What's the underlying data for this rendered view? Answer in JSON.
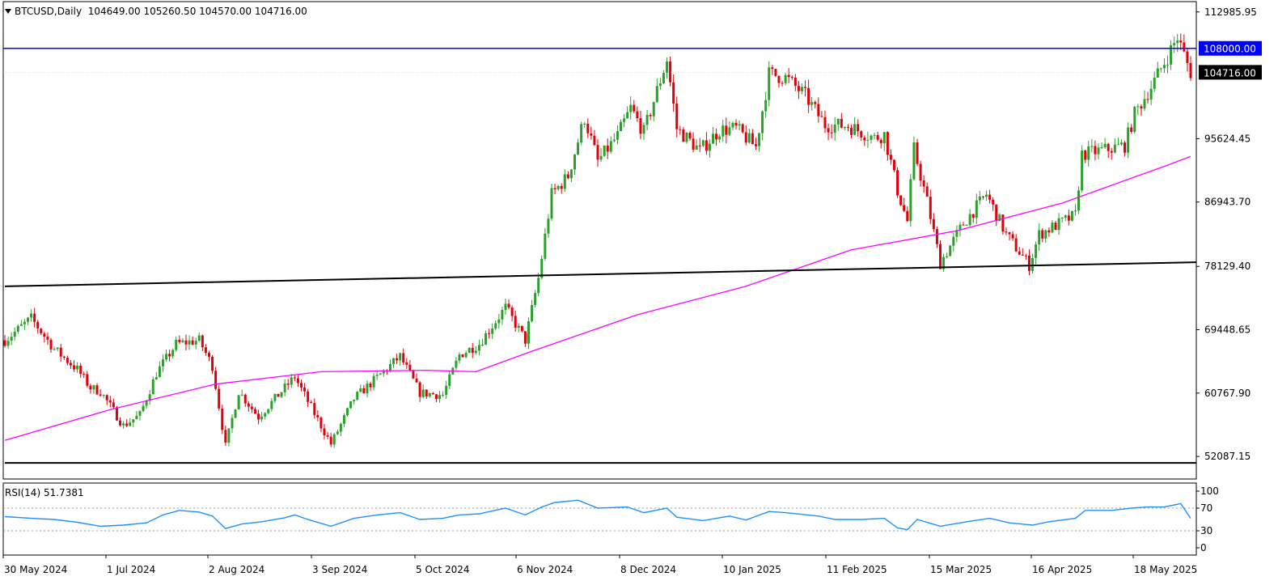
{
  "header": {
    "symbol": "BTCUSD,Daily",
    "open": "104649.00",
    "high": "105260.50",
    "low": "104570.00",
    "close": "104716.00"
  },
  "indicator": {
    "name": "RSI(14)",
    "value": "51.7381",
    "levels": [
      "100",
      "70",
      "30",
      "0"
    ]
  },
  "colors": {
    "up": "#2ca02c",
    "down": "#e0000c",
    "ma": "#ff00ff",
    "rsi": "#1e90ff",
    "hline": "#0000ff",
    "trend": "#000000"
  },
  "chart_data": [
    {
      "type": "candlestick",
      "title": "BTCUSD,Daily",
      "x_tick_labels": [
        "30 May 2024",
        "1 Jul 2024",
        "2 Aug 2024",
        "3 Sep 2024",
        "5 Oct 2024",
        "6 Nov 2024",
        "8 Dec 2024",
        "10 Jan 2025",
        "11 Feb 2025",
        "15 Mar 2025",
        "16 Apr 2025",
        "18 May 2025"
      ],
      "y_tick_labels": [
        "112985.95",
        "95624.45",
        "86943.70",
        "78129.40",
        "69448.65",
        "60767.90",
        "52087.15"
      ],
      "ylim": [
        49000,
        114400
      ],
      "xlim": [
        "2024-05-30",
        "2025-05-25"
      ],
      "horizontal_line": {
        "value": 108000,
        "label": "108000.00"
      },
      "last_price": {
        "value": 104716,
        "label": "104716.00"
      },
      "support_lines": [
        {
          "from": [
            "2024-05-30",
            75400
          ],
          "to": [
            "2025-05-25",
            78700
          ]
        },
        {
          "from": [
            "2024-05-30",
            51200
          ],
          "to": [
            "2025-05-25",
            51200
          ]
        }
      ],
      "series": [
        {
          "kind": "close_path",
          "points": [
            [
              "2024-05-30",
              68000
            ],
            [
              "2024-06-07",
              71000
            ],
            [
              "2024-06-14",
              66800
            ],
            [
              "2024-06-21",
              64000
            ],
            [
              "2024-06-25",
              61500
            ],
            [
              "2024-06-28",
              61000
            ],
            [
              "2024-07-05",
              56300
            ],
            [
              "2024-07-10",
              57800
            ],
            [
              "2024-07-15",
              63500
            ],
            [
              "2024-07-21",
              67500
            ],
            [
              "2024-07-28",
              68000
            ],
            [
              "2024-08-01",
              64500
            ],
            [
              "2024-08-05",
              53500
            ],
            [
              "2024-08-09",
              61000
            ],
            [
              "2024-08-15",
              57500
            ],
            [
              "2024-08-22",
              61000
            ],
            [
              "2024-08-26",
              63000
            ],
            [
              "2024-08-31",
              58800
            ],
            [
              "2024-09-06",
              53800
            ],
            [
              "2024-09-13",
              60000
            ],
            [
              "2024-09-20",
              62900
            ],
            [
              "2024-09-27",
              65800
            ],
            [
              "2024-10-03",
              60800
            ],
            [
              "2024-10-10",
              60500
            ],
            [
              "2024-10-15",
              66000
            ],
            [
              "2024-10-21",
              67500
            ],
            [
              "2024-10-29",
              72500
            ],
            [
              "2024-11-04",
              68000
            ],
            [
              "2024-11-08",
              76500
            ],
            [
              "2024-11-12",
              88000
            ],
            [
              "2024-11-17",
              90500
            ],
            [
              "2024-11-22",
              98500
            ],
            [
              "2024-11-26",
              92500
            ],
            [
              "2024-12-02",
              96000
            ],
            [
              "2024-12-06",
              99800
            ],
            [
              "2024-12-10",
              96500
            ],
            [
              "2024-12-17",
              106500
            ],
            [
              "2024-12-20",
              97000
            ],
            [
              "2024-12-27",
              94000
            ],
            [
              "2025-01-02",
              96800
            ],
            [
              "2025-01-07",
              97000
            ],
            [
              "2025-01-13",
              94500
            ],
            [
              "2025-01-17",
              104500
            ],
            [
              "2025-01-22",
              104000
            ],
            [
              "2025-01-28",
              101500
            ],
            [
              "2025-02-03",
              97500
            ],
            [
              "2025-02-10",
              97400
            ],
            [
              "2025-02-18",
              95700
            ],
            [
              "2025-02-21",
              96200
            ],
            [
              "2025-02-25",
              88500
            ],
            [
              "2025-02-28",
              84300
            ],
            [
              "2025-03-02",
              94200
            ],
            [
              "2025-03-06",
              87000
            ],
            [
              "2025-03-10",
              78600
            ],
            [
              "2025-03-17",
              84000
            ],
            [
              "2025-03-24",
              88000
            ],
            [
              "2025-03-30",
              82500
            ],
            [
              "2025-04-06",
              78300
            ],
            [
              "2025-04-09",
              82500
            ],
            [
              "2025-04-13",
              83500
            ],
            [
              "2025-04-20",
              85100
            ],
            [
              "2025-04-22",
              93500
            ],
            [
              "2025-04-30",
              94200
            ],
            [
              "2025-05-05",
              94700
            ],
            [
              "2025-05-08",
              99000
            ],
            [
              "2025-05-14",
              103500
            ],
            [
              "2025-05-21",
              109500
            ],
            [
              "2025-05-25",
              104716
            ]
          ]
        },
        {
          "kind": "moving_average",
          "points": [
            [
              "2024-05-30",
              54300
            ],
            [
              "2024-07-01",
              58500
            ],
            [
              "2024-08-02",
              62000
            ],
            [
              "2024-09-03",
              63700
            ],
            [
              "2024-10-05",
              63900
            ],
            [
              "2024-10-20",
              63700
            ],
            [
              "2024-11-06",
              66500
            ],
            [
              "2024-12-08",
              71500
            ],
            [
              "2025-01-10",
              75400
            ],
            [
              "2025-02-11",
              80400
            ],
            [
              "2025-03-15",
              83000
            ],
            [
              "2025-04-16",
              86800
            ],
            [
              "2025-05-18",
              92000
            ],
            [
              "2025-05-25",
              93200
            ]
          ]
        }
      ]
    },
    {
      "type": "line",
      "title": "RSI(14) 51.7381",
      "ylim": [
        0,
        100
      ],
      "reference_levels": [
        70,
        30
      ],
      "series": [
        {
          "name": "RSI(14)",
          "points": [
            [
              "2024-05-30",
              55
            ],
            [
              "2024-06-07",
              52
            ],
            [
              "2024-06-14",
              50
            ],
            [
              "2024-06-21",
              45
            ],
            [
              "2024-06-28",
              38
            ],
            [
              "2024-07-05",
              40
            ],
            [
              "2024-07-12",
              44
            ],
            [
              "2024-07-17",
              58
            ],
            [
              "2024-07-22",
              66
            ],
            [
              "2024-07-28",
              63
            ],
            [
              "2024-08-01",
              56
            ],
            [
              "2024-08-05",
              34
            ],
            [
              "2024-08-10",
              42
            ],
            [
              "2024-08-16",
              46
            ],
            [
              "2024-08-23",
              53
            ],
            [
              "2024-08-26",
              58
            ],
            [
              "2024-08-30",
              50
            ],
            [
              "2024-09-06",
              38
            ],
            [
              "2024-09-13",
              52
            ],
            [
              "2024-09-20",
              58
            ],
            [
              "2024-09-27",
              62
            ],
            [
              "2024-10-03",
              50
            ],
            [
              "2024-10-10",
              52
            ],
            [
              "2024-10-15",
              58
            ],
            [
              "2024-10-21",
              60
            ],
            [
              "2024-10-29",
              70
            ],
            [
              "2024-11-04",
              58
            ],
            [
              "2024-11-09",
              72
            ],
            [
              "2024-11-13",
              80
            ],
            [
              "2024-11-20",
              84
            ],
            [
              "2024-11-26",
              70
            ],
            [
              "2024-12-05",
              72
            ],
            [
              "2024-12-10",
              62
            ],
            [
              "2024-12-17",
              70
            ],
            [
              "2024-12-20",
              54
            ],
            [
              "2024-12-28",
              48
            ],
            [
              "2025-01-05",
              56
            ],
            [
              "2025-01-10",
              49
            ],
            [
              "2025-01-17",
              64
            ],
            [
              "2025-01-22",
              62
            ],
            [
              "2025-02-01",
              56
            ],
            [
              "2025-02-06",
              50
            ],
            [
              "2025-02-14",
              50
            ],
            [
              "2025-02-21",
              52
            ],
            [
              "2025-02-25",
              35
            ],
            [
              "2025-02-28",
              32
            ],
            [
              "2025-03-03",
              50
            ],
            [
              "2025-03-10",
              38
            ],
            [
              "2025-03-18",
              46
            ],
            [
              "2025-03-25",
              52
            ],
            [
              "2025-03-31",
              44
            ],
            [
              "2025-04-07",
              40
            ],
            [
              "2025-04-12",
              46
            ],
            [
              "2025-04-20",
              52
            ],
            [
              "2025-04-23",
              66
            ],
            [
              "2025-05-01",
              66
            ],
            [
              "2025-05-07",
              70
            ],
            [
              "2025-05-12",
              72
            ],
            [
              "2025-05-17",
              72
            ],
            [
              "2025-05-22",
              78
            ],
            [
              "2025-05-25",
              52
            ]
          ]
        }
      ]
    }
  ]
}
